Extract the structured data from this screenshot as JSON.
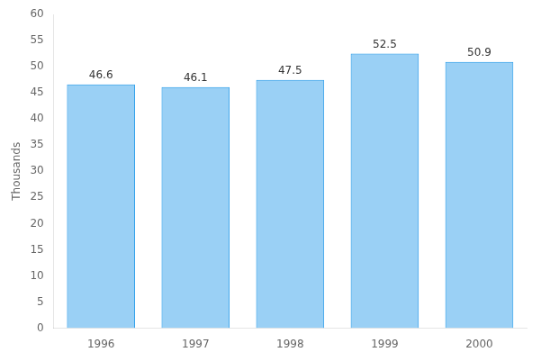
{
  "chart_data": {
    "type": "bar",
    "categories": [
      "1996",
      "1997",
      "1998",
      "1999",
      "2000"
    ],
    "values": [
      46.6,
      46.1,
      47.5,
      52.5,
      50.9
    ],
    "ylabel": "Thousands",
    "ylim": [
      0,
      60
    ],
    "yticks": [
      0,
      5,
      10,
      15,
      20,
      25,
      30,
      35,
      40,
      45,
      50,
      55,
      60
    ],
    "grid": false,
    "data_labels": true
  }
}
